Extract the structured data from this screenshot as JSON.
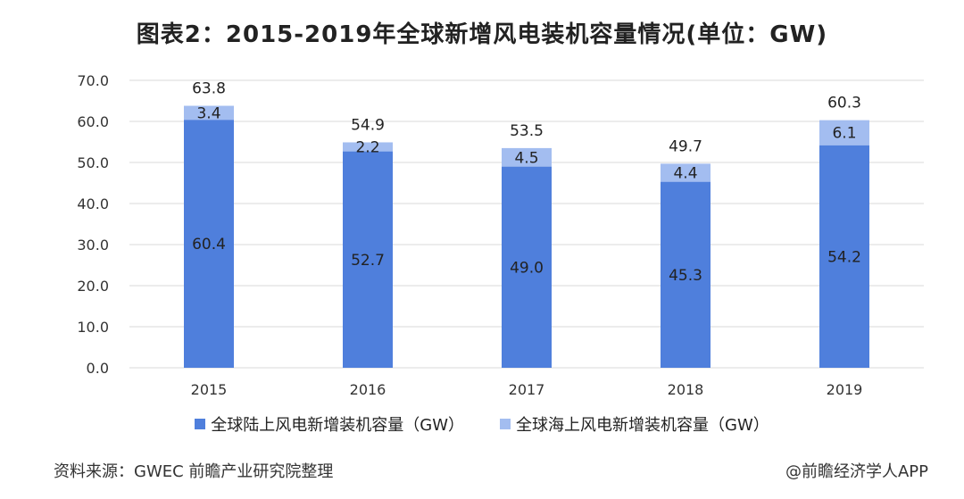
{
  "title": "图表2：2015-2019年全球新增风电装机容量情况(单位：GW)",
  "footer": {
    "source": "资料来源：GWEC 前瞻产业研究院整理",
    "credit": "@前瞻经济学人APP"
  },
  "colors": {
    "onshore": "#4f7fdc",
    "offshore": "#a3bdf0",
    "grid": "#d9d9d9"
  },
  "chart_data": {
    "type": "bar",
    "stacked": true,
    "title": "图表2：2015-2019年全球新增风电装机容量情况(单位：GW)",
    "categories": [
      "2015",
      "2016",
      "2017",
      "2018",
      "2019"
    ],
    "series": [
      {
        "name": "全球陆上风电新增装机容量（GW）",
        "values": [
          60.4,
          52.7,
          49.0,
          45.3,
          54.2
        ],
        "labels": [
          "60.4",
          "52.7",
          "49.0",
          "45.3",
          "54.2"
        ]
      },
      {
        "name": "全球海上风电新增装机容量（GW）",
        "values": [
          3.4,
          2.2,
          4.5,
          4.4,
          6.1
        ],
        "labels": [
          "3.4",
          "2.2",
          "4.5",
          "4.4",
          "6.1"
        ]
      }
    ],
    "totals": [
      "63.8",
      "54.9",
      "53.5",
      "49.7",
      "60.3"
    ],
    "ylim": [
      0,
      70
    ],
    "yticks": [
      "0.0",
      "10.0",
      "20.0",
      "30.0",
      "40.0",
      "50.0",
      "60.0",
      "70.0"
    ],
    "grid": true,
    "legend": "bottom"
  }
}
